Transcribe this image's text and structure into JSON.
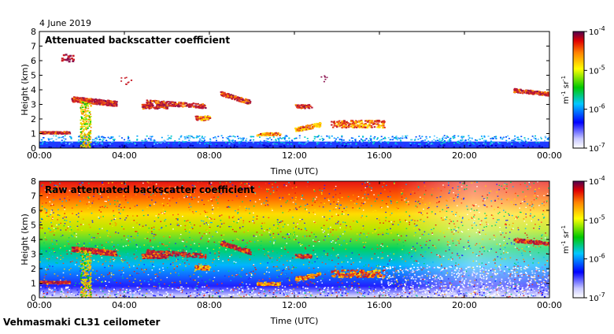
{
  "date": "4 June 2019",
  "footer": "Vehmasmaki CL31 ceilometer",
  "colors": {
    "accent": "#0000ff",
    "cloud": "#c81e28"
  },
  "chart_data": [
    {
      "type": "heatmap",
      "title": "Attenuated backscatter coefficient",
      "xlabel": "Time (UTC)",
      "ylabel": "Height (km)",
      "xlim": [
        0,
        24
      ],
      "ylim": [
        0,
        8
      ],
      "xticks": [
        0,
        4,
        8,
        12,
        16,
        20,
        24
      ],
      "xtick_labels": [
        "00:00",
        "04:00",
        "08:00",
        "12:00",
        "16:00",
        "20:00",
        "00:00"
      ],
      "yticks": [
        0,
        1,
        2,
        3,
        4,
        5,
        6,
        7,
        8
      ],
      "colorbar": {
        "scale": "log",
        "min": "10^-7",
        "max": "10^-4",
        "tick_labels": [
          "10-4",
          "10-5",
          "10-6",
          "10-7"
        ],
        "label": "m-1 sr-1"
      },
      "features": [
        {
          "name": "boundary layer",
          "t": [
            0,
            24
          ],
          "height_km": [
            0,
            0.5
          ]
        },
        {
          "name": "low cloud",
          "t": [
            0,
            1.4
          ],
          "height_km": 1.1
        },
        {
          "name": "cloud layer",
          "t": [
            1.5,
            3.6
          ],
          "height_km": 3.4
        },
        {
          "name": "precipitation",
          "t": [
            1.9,
            2.4
          ],
          "height_km": [
            0,
            3.3
          ]
        },
        {
          "name": "mid cloud",
          "t": [
            4.8,
            9.9
          ],
          "height_km": [
            2.0,
            3.8
          ]
        },
        {
          "name": "cloud patches",
          "t": [
            10.2,
            16.2
          ],
          "height_km": [
            1.0,
            2.9
          ]
        },
        {
          "name": "high cloud",
          "t": [
            22.3,
            24
          ],
          "height_km": 4.0
        }
      ]
    },
    {
      "type": "heatmap",
      "title": "Raw attenuated backscatter coefficient",
      "xlabel": "Time (UTC)",
      "ylabel": "Height (km)",
      "xlim": [
        0,
        24
      ],
      "ylim": [
        0,
        8
      ],
      "xticks": [
        0,
        4,
        8,
        12,
        16,
        20,
        24
      ],
      "xtick_labels": [
        "00:00",
        "04:00",
        "08:00",
        "12:00",
        "16:00",
        "20:00",
        "00:00"
      ],
      "yticks": [
        0,
        1,
        2,
        3,
        4,
        5,
        6,
        7,
        8
      ],
      "colorbar": {
        "scale": "log",
        "min": "10^-7",
        "max": "10^-4",
        "tick_labels": [
          "10-4",
          "10-5",
          "10-6",
          "10-7"
        ],
        "label": "m-1 sr-1"
      },
      "features": [
        {
          "name": "noisy background",
          "t": [
            0,
            24
          ],
          "height_km": [
            0,
            8
          ]
        },
        {
          "name": "low cloud",
          "t": [
            0,
            1.4
          ],
          "height_km": 1.1
        },
        {
          "name": "cloud layer",
          "t": [
            1.5,
            3.6
          ],
          "height_km": 3.4
        },
        {
          "name": "mid cloud",
          "t": [
            4.8,
            9.9
          ],
          "height_km": [
            2.0,
            3.8
          ]
        },
        {
          "name": "high cloud",
          "t": [
            22.3,
            24
          ],
          "height_km": 4.0
        }
      ]
    }
  ]
}
